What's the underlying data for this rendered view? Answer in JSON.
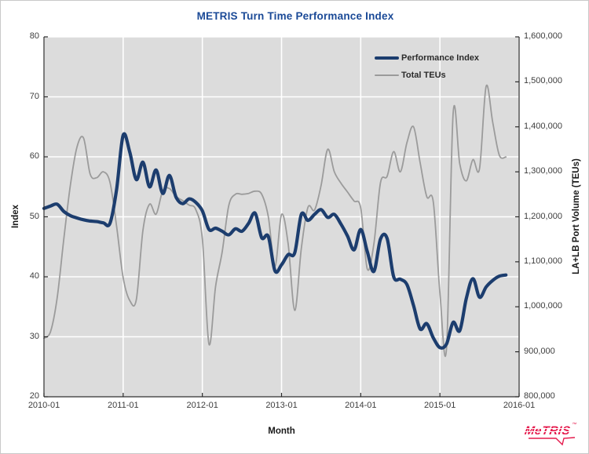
{
  "chart": {
    "title": "METRIS Turn Time Performance Index",
    "xlabel": "Month",
    "ylabel_left": "Index",
    "ylabel_right": "LA+LB Port Volume (TEUs)",
    "x_ticks": [
      "2010-01",
      "2011-01",
      "2012-01",
      "2013-01",
      "2014-01",
      "2015-01",
      "2016-01"
    ],
    "y_ticks_left": [
      "20",
      "30",
      "40",
      "50",
      "60",
      "70",
      "80"
    ],
    "y_ticks_right": [
      "800,000",
      "900,000",
      "1,000,000",
      "1,100,000",
      "1,200,000",
      "1,300,000",
      "1,400,000",
      "1,500,000",
      "1,600,000"
    ],
    "legend": [
      {
        "label": "Performance Index",
        "color": "#1c3d6e",
        "thickness": 4
      },
      {
        "label": "Total TEUs",
        "color": "#9b9b9b",
        "thickness": 2
      }
    ],
    "colors": {
      "title": "#1b4a97",
      "tick_text": "#3d3d3d",
      "axis": "#2a2a2a"
    }
  },
  "chart_data": {
    "type": "line",
    "title": "METRIS Turn Time Performance Index",
    "xlabel": "Month",
    "ylabel_left": "Index",
    "ylabel_right": "LA+LB Port Volume (TEUs)",
    "ylim_left": [
      20,
      80
    ],
    "ylim_right": [
      800000,
      1600000
    ],
    "x_tick_labels": [
      "2010-01",
      "2011-01",
      "2012-01",
      "2013-01",
      "2014-01",
      "2015-01",
      "2016-01"
    ],
    "x_months_total_span": 72,
    "grid": true,
    "legend_position": "top-right",
    "panel_color": "#dcdcdc",
    "grid_color": "#ffffff",
    "months": [
      "2010-01",
      "2010-02",
      "2010-03",
      "2010-04",
      "2010-05",
      "2010-06",
      "2010-07",
      "2010-08",
      "2010-09",
      "2010-10",
      "2010-11",
      "2010-12",
      "2011-01",
      "2011-02",
      "2011-03",
      "2011-04",
      "2011-05",
      "2011-06",
      "2011-07",
      "2011-08",
      "2011-09",
      "2011-10",
      "2011-11",
      "2011-12",
      "2012-01",
      "2012-02",
      "2012-03",
      "2012-04",
      "2012-05",
      "2012-06",
      "2012-07",
      "2012-08",
      "2012-09",
      "2012-10",
      "2012-11",
      "2012-12",
      "2013-01",
      "2013-02",
      "2013-03",
      "2013-04",
      "2013-05",
      "2013-06",
      "2013-07",
      "2013-08",
      "2013-09",
      "2013-10",
      "2013-11",
      "2013-12",
      "2014-01",
      "2014-02",
      "2014-03",
      "2014-04",
      "2014-05",
      "2014-06",
      "2014-07",
      "2014-08",
      "2014-09",
      "2014-10",
      "2014-11",
      "2014-12",
      "2015-01",
      "2015-02",
      "2015-03",
      "2015-04",
      "2015-05",
      "2015-06",
      "2015-07",
      "2015-08",
      "2015-09",
      "2015-10",
      "2015-11"
    ],
    "series": [
      {
        "name": "Performance Index",
        "axis": "left",
        "color": "#1c3d6e",
        "width": 4.2,
        "values": [
          51.4,
          51.8,
          52.1,
          50.9,
          50.2,
          49.8,
          49.5,
          49.3,
          49.2,
          49.0,
          48.9,
          54.5,
          63.6,
          60.8,
          56.2,
          59.1,
          55.0,
          57.8,
          53.9,
          56.9,
          53.3,
          52.2,
          53.0,
          52.4,
          51.0,
          47.9,
          48.1,
          47.6,
          47.0,
          48.0,
          47.6,
          48.9,
          50.6,
          46.5,
          46.7,
          41.0,
          42.0,
          43.7,
          44.0,
          50.4,
          49.4,
          50.4,
          51.2,
          49.9,
          50.4,
          48.8,
          46.8,
          44.5,
          47.9,
          44.2,
          40.9,
          46.3,
          46.4,
          40.0,
          39.6,
          38.7,
          35.2,
          31.3,
          32.2,
          29.8,
          28.2,
          28.8,
          32.4,
          31.0,
          36.4,
          39.7,
          36.6,
          38.3,
          39.4,
          40.1,
          40.3
        ]
      },
      {
        "name": "Total TEUs",
        "axis": "right",
        "color": "#9b9b9b",
        "width": 1.8,
        "values": [
          930000,
          945000,
          1020000,
          1150000,
          1270000,
          1355000,
          1375000,
          1295000,
          1287000,
          1300000,
          1277000,
          1180000,
          1065000,
          1014000,
          1016000,
          1170000,
          1228000,
          1206000,
          1258000,
          1263000,
          1245000,
          1236000,
          1226000,
          1216000,
          1150000,
          917000,
          1045000,
          1122000,
          1225000,
          1250000,
          1250000,
          1252000,
          1257000,
          1250000,
          1200000,
          1090000,
          1205000,
          1140000,
          992000,
          1130000,
          1221000,
          1215000,
          1270000,
          1350000,
          1300000,
          1275000,
          1255000,
          1235000,
          1220000,
          1084000,
          1140000,
          1276000,
          1290000,
          1345000,
          1300000,
          1365000,
          1400000,
          1320000,
          1245000,
          1232000,
          1030000,
          908000,
          1430000,
          1318000,
          1280000,
          1327000,
          1307000,
          1490000,
          1410000,
          1337000,
          1333000
        ]
      }
    ]
  },
  "logo": {
    "text": "MeTRIS",
    "tm": "™",
    "color": "#e51a4c"
  }
}
